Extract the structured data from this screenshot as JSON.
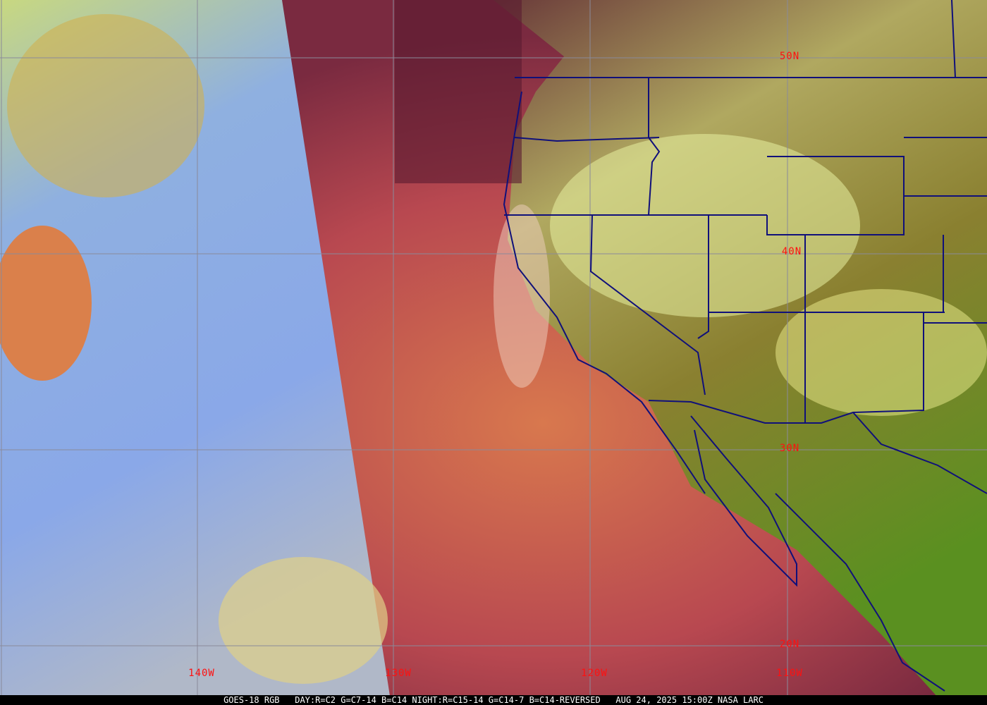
{
  "satellite": "GOES-18",
  "product": "RGB",
  "caption": {
    "left": "GOES-18 RGB",
    "recipe": "DAY:R=C2 G=C7-14 B=C14 NIGHT:R=C15-14 G=C14-7 B=C14-REVERSED",
    "timestamp": "AUG 24, 2025 15:00Z NASA LARC"
  },
  "latitude_labels": [
    "50N",
    "40N",
    "30N",
    "20N"
  ],
  "longitude_labels": [
    "140W",
    "130W",
    "120W",
    "110W"
  ],
  "colors": {
    "label": "#ff1010",
    "grid": "#8a8a9a",
    "borders": "#10107a",
    "caption_bg": "#000000"
  }
}
